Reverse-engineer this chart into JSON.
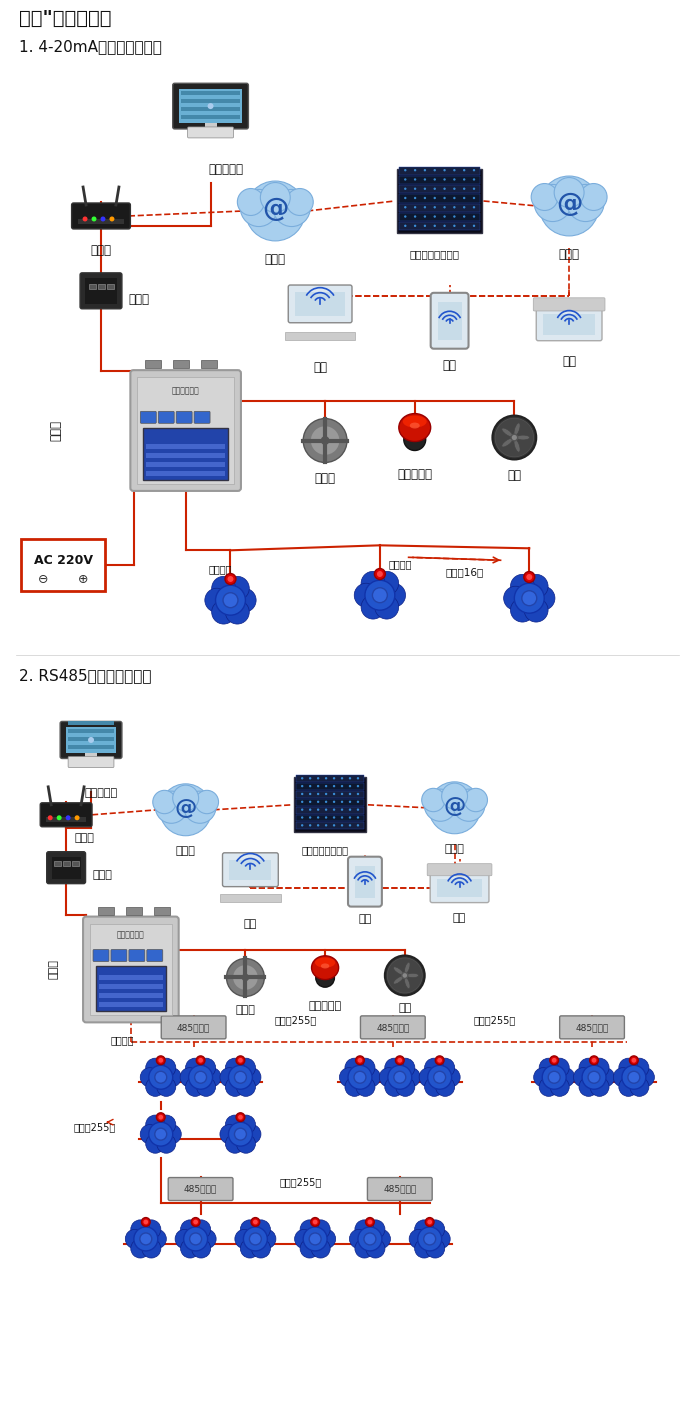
{
  "title": "大众\"系列报警器",
  "section1_title": "1. 4-20mA信号连接系统图",
  "section2_title": "2. RS485信号连接系统图",
  "bg_color": "#ffffff",
  "rc": "#cc2200",
  "labels": {
    "computer": "单机版电脑",
    "router": "路由器",
    "internet": "互联网",
    "server": "安帝尔网络服务器",
    "converter": "转换器",
    "pc": "电脑",
    "phone": "手机",
    "terminal": "终端",
    "comm": "通讯线",
    "valve": "电磁阀",
    "alarm": "声光报警器",
    "fan": "风机",
    "ac": "AC 220V",
    "sigout": "信号输出",
    "connect16": "可连接16个",
    "repeater": "485中继器",
    "connect255": "可连接255台"
  }
}
